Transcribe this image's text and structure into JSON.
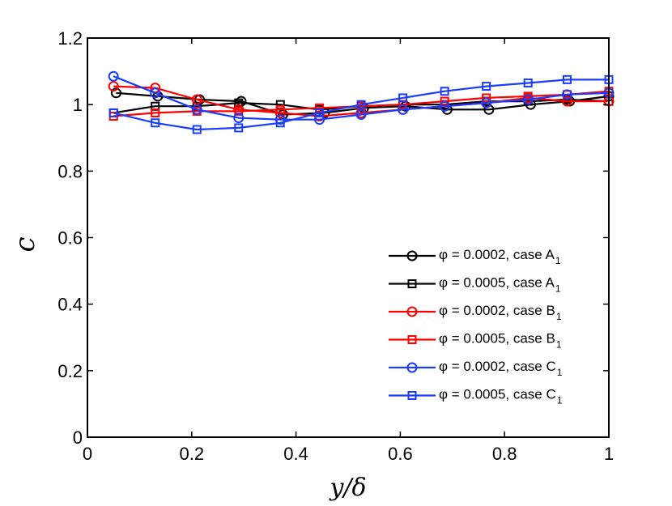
{
  "chart_data": {
    "type": "line",
    "title": "",
    "xlabel": "y/δ",
    "ylabel": "c",
    "xlim": [
      0,
      1
    ],
    "ylim": [
      0,
      1.2
    ],
    "xticks": [
      0,
      0.2,
      0.4,
      0.6,
      0.8,
      1
    ],
    "yticks": [
      0,
      0.2,
      0.4,
      0.6,
      0.8,
      1,
      1.2
    ],
    "xtick_labels": [
      "0",
      "0.2",
      "0.4",
      "0.6",
      "0.8",
      "1"
    ],
    "ytick_labels": [
      "0",
      "0.2",
      "0.4",
      "0.6",
      "0.8",
      "1",
      "1.2"
    ],
    "grid": false,
    "legend_position": "bottom-right",
    "series": [
      {
        "name": "φ = 0.0002, case A",
        "subscript": "1",
        "color": "#000000",
        "marker": "circle",
        "x": [
          0.055,
          0.135,
          0.215,
          0.295,
          0.375,
          0.455,
          0.53,
          0.61,
          0.69,
          0.77,
          0.85,
          0.925,
          1.0
        ],
        "y": [
          1.035,
          1.025,
          1.015,
          1.01,
          0.97,
          0.975,
          0.99,
          0.995,
          0.985,
          0.985,
          1.0,
          1.01,
          1.025
        ]
      },
      {
        "name": "φ = 0.0005, case A",
        "subscript": "1",
        "color": "#000000",
        "marker": "square",
        "x": [
          0.05,
          0.13,
          0.21,
          0.29,
          0.37,
          0.445,
          0.525,
          0.605,
          0.685,
          0.765,
          0.845,
          0.92,
          1.0
        ],
        "y": [
          0.975,
          0.995,
          0.995,
          1.005,
          1.0,
          0.985,
          0.995,
          1.0,
          1.0,
          1.01,
          1.01,
          1.015,
          1.01
        ]
      },
      {
        "name": "φ = 0.0002, case B",
        "subscript": "1",
        "color": "#ff0000",
        "marker": "circle",
        "x": [
          0.05,
          0.13,
          0.21,
          0.29,
          0.37,
          0.445,
          0.525,
          0.605,
          0.685,
          0.765,
          0.845,
          0.92,
          1.0
        ],
        "y": [
          1.055,
          1.05,
          1.015,
          0.985,
          0.975,
          0.965,
          0.975,
          0.985,
          0.995,
          1.005,
          1.02,
          1.01,
          1.01
        ]
      },
      {
        "name": "φ = 0.0005, case B",
        "subscript": "1",
        "color": "#ff0000",
        "marker": "square",
        "x": [
          0.05,
          0.13,
          0.21,
          0.29,
          0.37,
          0.445,
          0.525,
          0.605,
          0.685,
          0.765,
          0.845,
          0.92,
          1.0
        ],
        "y": [
          0.965,
          0.975,
          0.98,
          0.98,
          0.985,
          0.99,
          0.995,
          1.0,
          1.01,
          1.02,
          1.025,
          1.03,
          1.04
        ]
      },
      {
        "name": "φ = 0.0002, case C",
        "subscript": "1",
        "color": "#1a3cff",
        "marker": "circle",
        "x": [
          0.05,
          0.13,
          0.21,
          0.29,
          0.37,
          0.445,
          0.525,
          0.605,
          0.685,
          0.765,
          0.845,
          0.92,
          1.0
        ],
        "y": [
          1.085,
          1.035,
          0.985,
          0.96,
          0.955,
          0.955,
          0.97,
          0.985,
          0.995,
          1.005,
          1.015,
          1.03,
          1.035
        ]
      },
      {
        "name": "φ = 0.0005, case C",
        "subscript": "1",
        "color": "#1a3cff",
        "marker": "square",
        "x": [
          0.05,
          0.13,
          0.21,
          0.29,
          0.37,
          0.445,
          0.525,
          0.605,
          0.685,
          0.765,
          0.845,
          0.92,
          1.0
        ],
        "y": [
          0.975,
          0.945,
          0.925,
          0.93,
          0.945,
          0.975,
          1.0,
          1.02,
          1.04,
          1.055,
          1.065,
          1.075,
          1.075
        ]
      }
    ]
  }
}
